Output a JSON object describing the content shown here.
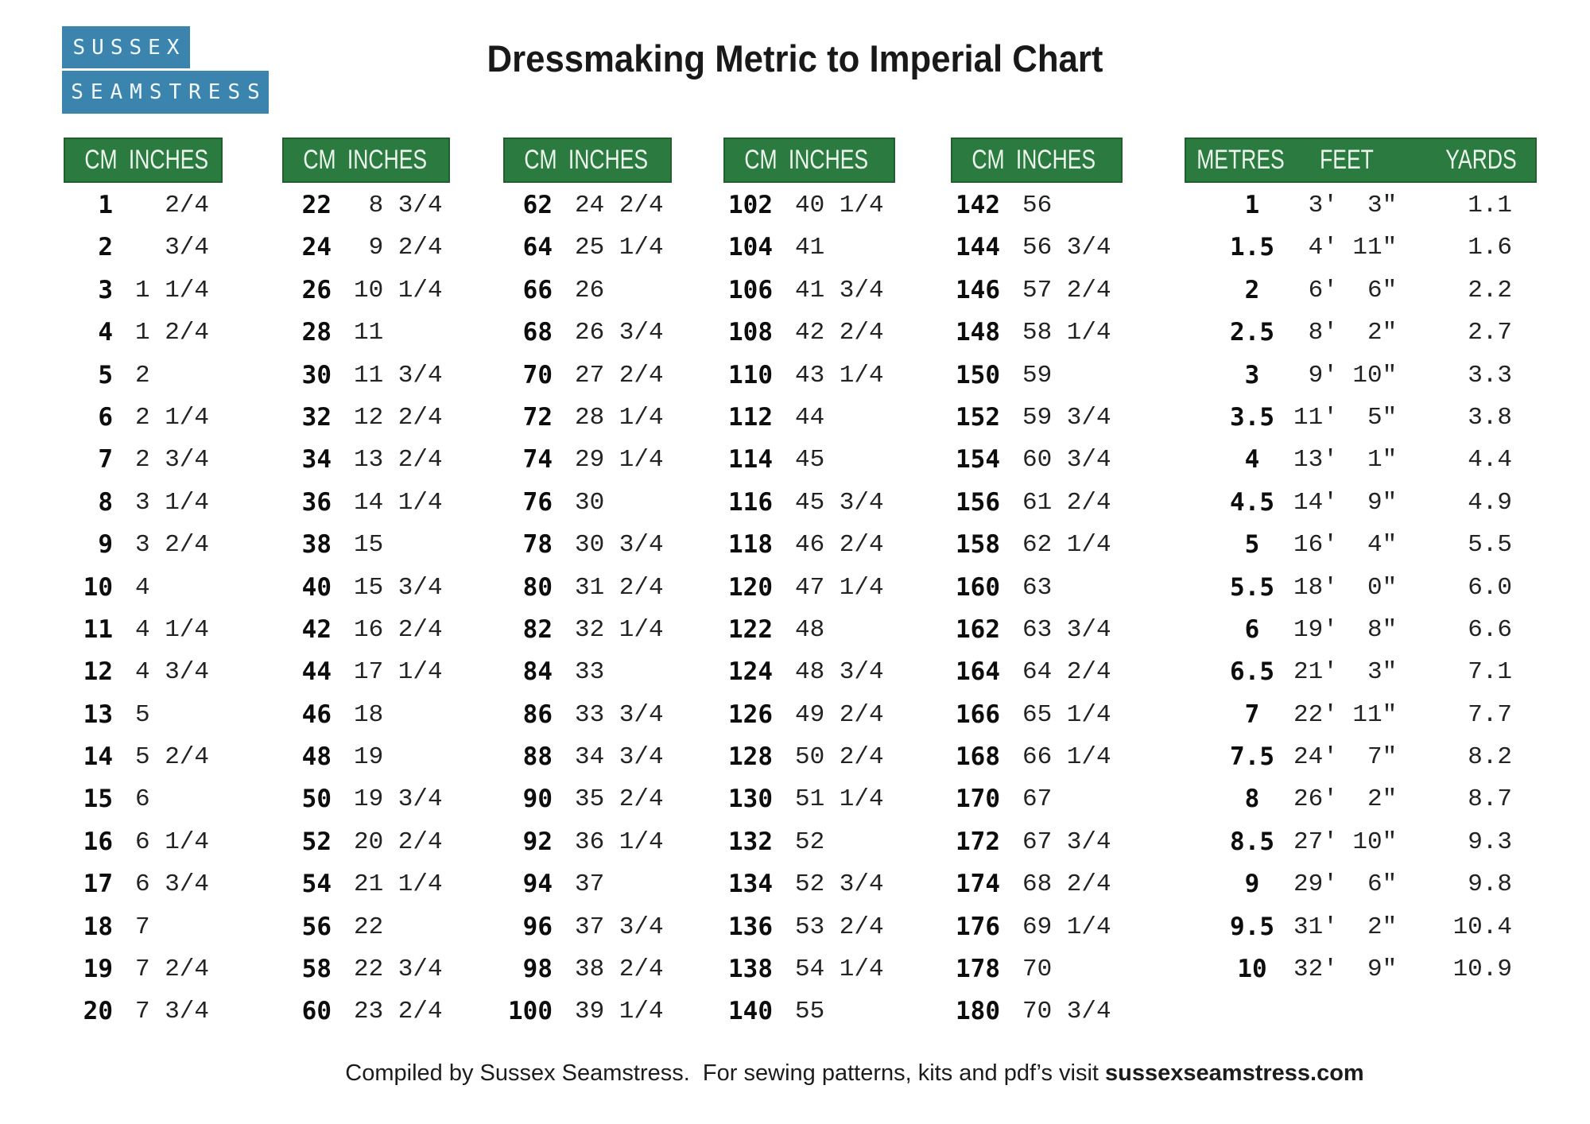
{
  "logo": {
    "line1": "SUSSEX",
    "line2": "SEAMSTRESS"
  },
  "title": "Dressmaking Metric to Imperial Chart",
  "footer": {
    "text_regular": "Compiled by Sussex Seamstress.  For sewing patterns, kits and pdf’s visit ",
    "text_bold": "sussexseamstress.com"
  },
  "colors": {
    "header_green": "#2b7a40",
    "header_border_green": "#20602f",
    "header_text": "#ecf6ec",
    "logo_blue": "#3a84ae",
    "body_text": "#161616"
  },
  "tables": [
    {
      "type": "cm",
      "headers": [
        "CM",
        "INCHES"
      ],
      "rows": [
        [
          "1",
          "  2/4"
        ],
        [
          "2",
          "  3/4"
        ],
        [
          "3",
          "1 1/4"
        ],
        [
          "4",
          "1 2/4"
        ],
        [
          "5",
          "2"
        ],
        [
          "6",
          "2 1/4"
        ],
        [
          "7",
          "2 3/4"
        ],
        [
          "8",
          "3 1/4"
        ],
        [
          "9",
          "3 2/4"
        ],
        [
          "10",
          "4"
        ],
        [
          "11",
          "4 1/4"
        ],
        [
          "12",
          "4 3/4"
        ],
        [
          "13",
          "5"
        ],
        [
          "14",
          "5 2/4"
        ],
        [
          "15",
          "6"
        ],
        [
          "16",
          "6 1/4"
        ],
        [
          "17",
          "6 3/4"
        ],
        [
          "18",
          "7"
        ],
        [
          "19",
          "7 2/4"
        ],
        [
          "20",
          "7 3/4"
        ]
      ]
    },
    {
      "type": "cm",
      "headers": [
        "CM",
        "INCHES"
      ],
      "rows": [
        [
          "22",
          " 8 3/4"
        ],
        [
          "24",
          " 9 2/4"
        ],
        [
          "26",
          "10 1/4"
        ],
        [
          "28",
          "11"
        ],
        [
          "30",
          "11 3/4"
        ],
        [
          "32",
          "12 2/4"
        ],
        [
          "34",
          "13 2/4"
        ],
        [
          "36",
          "14 1/4"
        ],
        [
          "38",
          "15"
        ],
        [
          "40",
          "15 3/4"
        ],
        [
          "42",
          "16 2/4"
        ],
        [
          "44",
          "17 1/4"
        ],
        [
          "46",
          "18"
        ],
        [
          "48",
          "19"
        ],
        [
          "50",
          "19 3/4"
        ],
        [
          "52",
          "20 2/4"
        ],
        [
          "54",
          "21 1/4"
        ],
        [
          "56",
          "22"
        ],
        [
          "58",
          "22 3/4"
        ],
        [
          "60",
          "23 2/4"
        ]
      ]
    },
    {
      "type": "cm",
      "headers": [
        "CM",
        "INCHES"
      ],
      "rows": [
        [
          "62",
          "24 2/4"
        ],
        [
          "64",
          "25 1/4"
        ],
        [
          "66",
          "26"
        ],
        [
          "68",
          "26 3/4"
        ],
        [
          "70",
          "27 2/4"
        ],
        [
          "72",
          "28 1/4"
        ],
        [
          "74",
          "29 1/4"
        ],
        [
          "76",
          "30"
        ],
        [
          "78",
          "30 3/4"
        ],
        [
          "80",
          "31 2/4"
        ],
        [
          "82",
          "32 1/4"
        ],
        [
          "84",
          "33"
        ],
        [
          "86",
          "33 3/4"
        ],
        [
          "88",
          "34 3/4"
        ],
        [
          "90",
          "35 2/4"
        ],
        [
          "92",
          "36 1/4"
        ],
        [
          "94",
          "37"
        ],
        [
          "96",
          "37 3/4"
        ],
        [
          "98",
          "38 2/4"
        ],
        [
          "100",
          "39 1/4"
        ]
      ]
    },
    {
      "type": "cm",
      "headers": [
        "CM",
        "INCHES"
      ],
      "rows": [
        [
          "102",
          "40 1/4"
        ],
        [
          "104",
          "41"
        ],
        [
          "106",
          "41 3/4"
        ],
        [
          "108",
          "42 2/4"
        ],
        [
          "110",
          "43 1/4"
        ],
        [
          "112",
          "44"
        ],
        [
          "114",
          "45"
        ],
        [
          "116",
          "45 3/4"
        ],
        [
          "118",
          "46 2/4"
        ],
        [
          "120",
          "47 1/4"
        ],
        [
          "122",
          "48"
        ],
        [
          "124",
          "48 3/4"
        ],
        [
          "126",
          "49 2/4"
        ],
        [
          "128",
          "50 2/4"
        ],
        [
          "130",
          "51 1/4"
        ],
        [
          "132",
          "52"
        ],
        [
          "134",
          "52 3/4"
        ],
        [
          "136",
          "53 2/4"
        ],
        [
          "138",
          "54 1/4"
        ],
        [
          "140",
          "55"
        ]
      ]
    },
    {
      "type": "cm",
      "headers": [
        "CM",
        "INCHES"
      ],
      "rows": [
        [
          "142",
          "56"
        ],
        [
          "144",
          "56 3/4"
        ],
        [
          "146",
          "57 2/4"
        ],
        [
          "148",
          "58 1/4"
        ],
        [
          "150",
          "59"
        ],
        [
          "152",
          "59 3/4"
        ],
        [
          "154",
          "60 3/4"
        ],
        [
          "156",
          "61 2/4"
        ],
        [
          "158",
          "62 1/4"
        ],
        [
          "160",
          "63"
        ],
        [
          "162",
          "63 3/4"
        ],
        [
          "164",
          "64 2/4"
        ],
        [
          "166",
          "65 1/4"
        ],
        [
          "168",
          "66 1/4"
        ],
        [
          "170",
          "67"
        ],
        [
          "172",
          "67 3/4"
        ],
        [
          "174",
          "68 2/4"
        ],
        [
          "176",
          "69 1/4"
        ],
        [
          "178",
          "70"
        ],
        [
          "180",
          "70 3/4"
        ]
      ]
    },
    {
      "type": "metric",
      "headers": [
        "METRES",
        "FEET",
        "YARDS"
      ],
      "rows": [
        [
          "1",
          " 3'  3\"",
          "1.1"
        ],
        [
          "1.5",
          " 4' 11\"",
          "1.6"
        ],
        [
          "2",
          " 6'  6\"",
          "2.2"
        ],
        [
          "2.5",
          " 8'  2\"",
          "2.7"
        ],
        [
          "3",
          " 9' 10\"",
          "3.3"
        ],
        [
          "3.5",
          "11'  5\"",
          "3.8"
        ],
        [
          "4",
          "13'  1\"",
          "4.4"
        ],
        [
          "4.5",
          "14'  9\"",
          "4.9"
        ],
        [
          "5",
          "16'  4\"",
          "5.5"
        ],
        [
          "5.5",
          "18'  0\"",
          "6.0"
        ],
        [
          "6",
          "19'  8\"",
          "6.6"
        ],
        [
          "6.5",
          "21'  3\"",
          "7.1"
        ],
        [
          "7",
          "22' 11\"",
          "7.7"
        ],
        [
          "7.5",
          "24'  7\"",
          "8.2"
        ],
        [
          "8",
          "26'  2\"",
          "8.7"
        ],
        [
          "8.5",
          "27' 10\"",
          "9.3"
        ],
        [
          "9",
          "29'  6\"",
          "9.8"
        ],
        [
          "9.5",
          "31'  2\"",
          "10.4"
        ],
        [
          "10",
          "32'  9\"",
          "10.9"
        ]
      ]
    }
  ]
}
